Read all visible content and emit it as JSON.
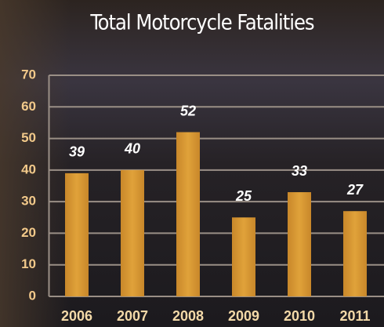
{
  "chart_data": {
    "type": "bar",
    "title": "Total Motorcycle Fatalities",
    "categories": [
      "2006",
      "2007",
      "2008",
      "2009",
      "2010",
      "2011"
    ],
    "values": [
      39,
      40,
      52,
      25,
      33,
      27
    ],
    "color": "#d9982e",
    "ylim": [
      0,
      70
    ],
    "yticks": [
      0,
      10,
      20,
      30,
      40,
      50,
      60,
      70
    ],
    "grid": true
  }
}
